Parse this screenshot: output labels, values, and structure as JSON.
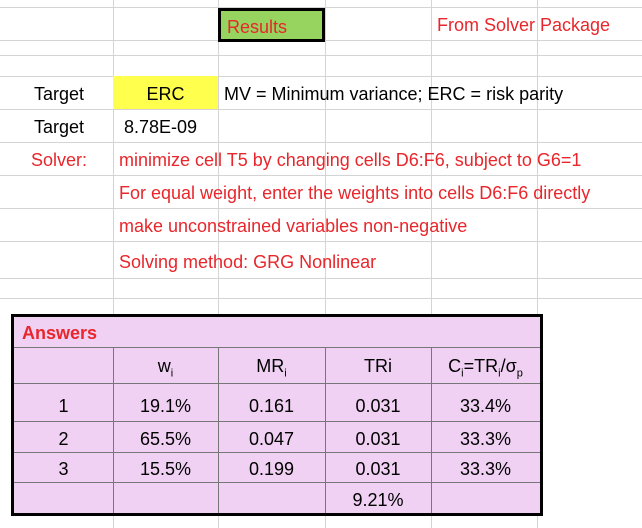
{
  "header": {
    "results_label": "Results",
    "source_note": "From Solver Package"
  },
  "settings": {
    "target_label": "Target",
    "target_value": "ERC",
    "target_note": "MV = Minimum variance; ERC = risk parity",
    "target2_label": "Target",
    "target2_value": "8.78E-09"
  },
  "solver": {
    "label": "Solver:",
    "line1": "minimize cell T5 by changing cells D6:F6, subject to G6=1",
    "line2": "For equal weight, enter the weights into cells D6:F6 directly",
    "line3": "make unconstrained variables non-negative",
    "line4": "Solving method: GRG Nonlinear"
  },
  "answers": {
    "title": "Answers",
    "headers": {
      "w": "w",
      "w_sub": "i",
      "mr": "MR",
      "mr_sub": "i",
      "tr": "TRi",
      "c": "C",
      "c_sub": "i",
      "c_mid": "=TR",
      "c_sub2": "i",
      "c_sep": "/",
      "c_sigma": "σ",
      "c_sub3": "p"
    },
    "rows": [
      {
        "idx": "1",
        "w": "19.1%",
        "mr": "0.161",
        "tr": "0.031",
        "c": "33.4%"
      },
      {
        "idx": "2",
        "w": "65.5%",
        "mr": "0.047",
        "tr": "0.031",
        "c": "33.3%"
      },
      {
        "idx": "3",
        "w": "15.5%",
        "mr": "0.199",
        "tr": "0.031",
        "c": "33.3%"
      }
    ],
    "total_tr": "9.21%"
  },
  "colors": {
    "red_text": "#e8262b",
    "results_fill": "#96d35f",
    "erc_fill": "#ffff4d",
    "panel_fill": "#f0d1f3",
    "gridline": "#d4d4d4"
  }
}
